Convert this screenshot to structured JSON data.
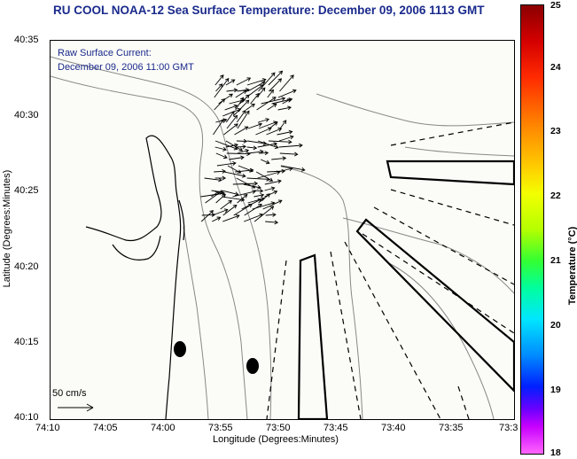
{
  "title": "RU COOL  NOAA-12  Sea Surface Temperature:  December 09, 2006 1113 GMT",
  "annotation": {
    "line1": "Raw Surface Current:",
    "line2": "December 09, 2006 11:00 GMT",
    "scale_label": "50 cm/s"
  },
  "axes": {
    "xlabel": "Longitude (Degrees:Minutes)",
    "ylabel": "Latitude (Degrees:Minutes)",
    "x_ticks": [
      "74:10",
      "74:05",
      "74:00",
      "73:55",
      "73:50",
      "73:45",
      "73:40",
      "73:35",
      "73:3"
    ],
    "y_ticks": [
      "40:35",
      "40:30",
      "40:25",
      "40:20",
      "40:15",
      "40:10"
    ]
  },
  "colorbar": {
    "label": "Temperature (°C)",
    "ticks": [
      "25",
      "24",
      "23",
      "22",
      "21",
      "20",
      "19",
      "18"
    ],
    "range": [
      18,
      25
    ]
  },
  "colors": {
    "title": "#1a2a8c",
    "coastline": "#000000",
    "contour": "#888888",
    "background": "#fbfbf7"
  }
}
